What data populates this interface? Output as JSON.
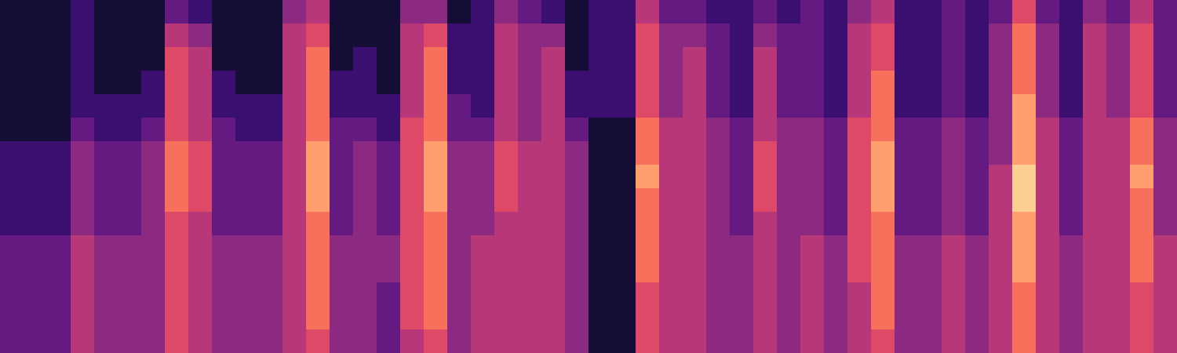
{
  "chart_data": {
    "type": "heatmap",
    "tick_labels": false,
    "color": "magma",
    "color_range": [
      0,
      10
    ],
    "cells": [
      [
        1,
        1,
        1,
        2,
        1,
        1,
        1,
        3,
        2,
        1,
        1,
        1,
        4,
        5,
        1,
        1,
        1,
        4,
        4,
        1,
        2,
        4,
        3,
        2,
        1,
        2,
        2,
        5,
        3,
        3,
        2,
        2,
        3,
        2,
        3,
        2,
        4,
        5,
        2,
        2,
        3,
        2,
        3,
        6,
        3,
        2,
        4,
        3,
        5,
        3
      ],
      [
        1,
        1,
        1,
        2,
        1,
        1,
        1,
        5,
        4,
        1,
        1,
        1,
        5,
        6,
        1,
        1,
        1,
        5,
        6,
        2,
        2,
        5,
        4,
        4,
        1,
        2,
        2,
        6,
        4,
        4,
        3,
        2,
        4,
        3,
        3,
        2,
        5,
        6,
        2,
        2,
        3,
        2,
        4,
        7,
        4,
        2,
        5,
        4,
        6,
        3
      ],
      [
        1,
        1,
        1,
        2,
        1,
        1,
        1,
        6,
        5,
        1,
        1,
        1,
        5,
        7,
        1,
        2,
        1,
        5,
        7,
        2,
        2,
        5,
        4,
        5,
        1,
        2,
        2,
        6,
        4,
        5,
        3,
        2,
        5,
        3,
        3,
        2,
        5,
        6,
        2,
        2,
        3,
        2,
        4,
        7,
        4,
        2,
        5,
        4,
        6,
        3
      ],
      [
        1,
        1,
        1,
        2,
        1,
        1,
        2,
        6,
        5,
        2,
        1,
        1,
        5,
        7,
        2,
        2,
        1,
        5,
        7,
        2,
        2,
        5,
        4,
        5,
        2,
        2,
        2,
        6,
        4,
        5,
        3,
        2,
        5,
        3,
        3,
        2,
        5,
        7,
        2,
        2,
        3,
        2,
        4,
        7,
        4,
        2,
        5,
        4,
        6,
        3
      ],
      [
        1,
        1,
        1,
        2,
        2,
        2,
        2,
        6,
        5,
        2,
        2,
        2,
        5,
        7,
        2,
        2,
        2,
        5,
        7,
        3,
        2,
        5,
        4,
        5,
        2,
        2,
        2,
        6,
        4,
        5,
        3,
        2,
        5,
        3,
        3,
        2,
        5,
        7,
        2,
        2,
        3,
        2,
        4,
        8,
        4,
        2,
        5,
        4,
        6,
        3
      ],
      [
        1,
        1,
        1,
        3,
        2,
        2,
        3,
        6,
        5,
        3,
        2,
        2,
        5,
        7,
        3,
        3,
        2,
        6,
        7,
        3,
        3,
        5,
        4,
        5,
        3,
        1,
        1,
        7,
        5,
        5,
        4,
        3,
        5,
        4,
        4,
        3,
        6,
        7,
        3,
        3,
        4,
        3,
        4,
        8,
        5,
        3,
        5,
        5,
        7,
        4
      ],
      [
        2,
        2,
        2,
        4,
        3,
        3,
        4,
        7,
        6,
        3,
        3,
        3,
        5,
        8,
        3,
        4,
        3,
        6,
        8,
        4,
        4,
        6,
        5,
        5,
        4,
        1,
        1,
        7,
        5,
        5,
        4,
        3,
        6,
        4,
        4,
        3,
        6,
        8,
        3,
        3,
        4,
        3,
        4,
        8,
        5,
        3,
        5,
        5,
        7,
        4
      ],
      [
        2,
        2,
        2,
        4,
        3,
        3,
        4,
        7,
        6,
        3,
        3,
        3,
        5,
        8,
        3,
        4,
        3,
        6,
        8,
        4,
        4,
        6,
        5,
        5,
        4,
        1,
        1,
        8,
        5,
        5,
        4,
        3,
        6,
        4,
        4,
        3,
        6,
        8,
        3,
        3,
        4,
        3,
        5,
        9,
        5,
        3,
        5,
        5,
        8,
        4
      ],
      [
        2,
        2,
        2,
        4,
        3,
        3,
        4,
        7,
        6,
        3,
        3,
        3,
        5,
        8,
        3,
        4,
        3,
        6,
        8,
        4,
        4,
        6,
        5,
        5,
        4,
        1,
        1,
        7,
        5,
        5,
        4,
        3,
        6,
        4,
        4,
        3,
        6,
        8,
        3,
        3,
        4,
        3,
        5,
        9,
        5,
        3,
        5,
        5,
        7,
        4
      ],
      [
        2,
        2,
        2,
        4,
        3,
        3,
        4,
        6,
        5,
        3,
        3,
        3,
        5,
        7,
        3,
        4,
        3,
        6,
        7,
        4,
        4,
        5,
        5,
        5,
        4,
        1,
        1,
        7,
        5,
        5,
        4,
        3,
        5,
        4,
        4,
        3,
        6,
        7,
        3,
        3,
        4,
        3,
        5,
        8,
        5,
        3,
        5,
        5,
        7,
        4
      ],
      [
        3,
        3,
        3,
        5,
        4,
        4,
        4,
        6,
        5,
        4,
        4,
        4,
        5,
        7,
        4,
        4,
        4,
        6,
        7,
        4,
        5,
        5,
        5,
        5,
        4,
        1,
        1,
        7,
        5,
        5,
        4,
        4,
        5,
        4,
        5,
        4,
        6,
        7,
        4,
        4,
        5,
        4,
        5,
        8,
        5,
        4,
        5,
        5,
        7,
        5
      ],
      [
        3,
        3,
        3,
        5,
        4,
        4,
        4,
        6,
        5,
        4,
        4,
        4,
        5,
        7,
        4,
        4,
        4,
        6,
        7,
        4,
        5,
        5,
        5,
        5,
        4,
        1,
        1,
        7,
        5,
        5,
        4,
        4,
        5,
        4,
        5,
        4,
        6,
        7,
        4,
        4,
        5,
        4,
        5,
        8,
        5,
        4,
        5,
        5,
        7,
        5
      ],
      [
        3,
        3,
        3,
        5,
        4,
        4,
        4,
        6,
        5,
        4,
        4,
        4,
        5,
        7,
        4,
        4,
        3,
        6,
        7,
        4,
        5,
        5,
        5,
        5,
        4,
        1,
        1,
        6,
        5,
        5,
        4,
        4,
        5,
        4,
        5,
        4,
        5,
        7,
        4,
        4,
        5,
        4,
        5,
        7,
        5,
        4,
        5,
        5,
        6,
        5
      ],
      [
        3,
        3,
        3,
        5,
        4,
        4,
        4,
        6,
        5,
        4,
        4,
        4,
        5,
        7,
        4,
        4,
        3,
        6,
        7,
        4,
        5,
        5,
        5,
        5,
        4,
        1,
        1,
        6,
        5,
        5,
        4,
        4,
        5,
        4,
        5,
        4,
        5,
        7,
        4,
        4,
        5,
        4,
        5,
        7,
        5,
        4,
        5,
        5,
        6,
        5
      ],
      [
        3,
        3,
        3,
        5,
        4,
        4,
        4,
        6,
        5,
        4,
        4,
        4,
        5,
        6,
        4,
        4,
        3,
        5,
        6,
        4,
        5,
        5,
        5,
        5,
        4,
        1,
        1,
        6,
        5,
        5,
        4,
        4,
        5,
        4,
        5,
        4,
        5,
        6,
        4,
        4,
        5,
        4,
        5,
        7,
        5,
        4,
        5,
        5,
        6,
        5
      ]
    ]
  }
}
